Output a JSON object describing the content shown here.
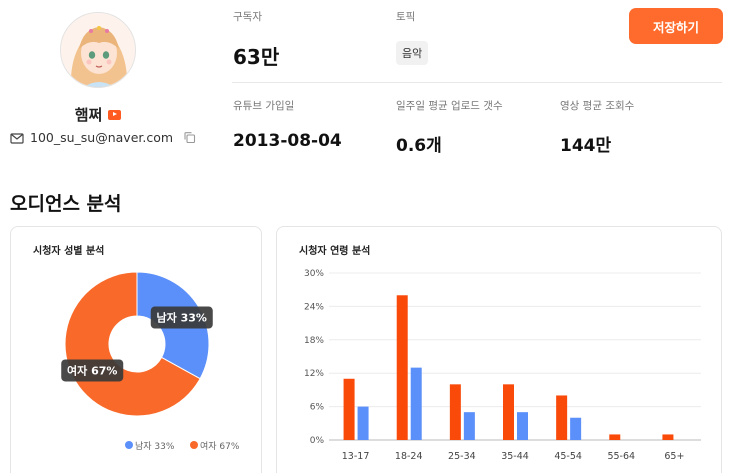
{
  "profile": {
    "channel_name": "햄쩌",
    "email": "100_su_su@naver.com"
  },
  "stats": {
    "subscribers_label": "구독자",
    "subscribers_value": "63만",
    "topic_label": "토픽",
    "topic_value": "음악",
    "joined_label": "유튜브 가입일",
    "joined_value": "2013-08-04",
    "weekly_uploads_label": "일주일 평균 업로드 갯수",
    "weekly_uploads_value": "0.6개",
    "avg_views_label": "영상 평균 조회수",
    "avg_views_value": "144만"
  },
  "actions": {
    "save_label": "저장하기"
  },
  "section": {
    "title": "오디언스 분석"
  },
  "colors": {
    "accent": "#ff6b2c",
    "male": "#5b8ff9",
    "female": "#f96a2a",
    "female_bar": "#fa4a0a"
  },
  "chart_data": [
    {
      "type": "pie",
      "title": "시청자 성별 분석",
      "donut": true,
      "slices": [
        {
          "label": "남자",
          "value": 33,
          "display": "남자 33%",
          "legend": "남자 33%",
          "color": "#5b8ff9"
        },
        {
          "label": "여자",
          "value": 67,
          "display": "여자 67%",
          "legend": "여자 67%",
          "color": "#f96a2a"
        }
      ],
      "legend_position": "bottom-right"
    },
    {
      "type": "bar",
      "title": "시청자 연령 분석",
      "categories": [
        "13-17",
        "18-24",
        "25-34",
        "35-44",
        "45-54",
        "55-64",
        "65+"
      ],
      "series": [
        {
          "values": [
            11,
            26,
            10,
            10,
            8,
            1,
            1
          ],
          "color": "#fa4a0a"
        },
        {
          "values": [
            6,
            13,
            5,
            5,
            4,
            0,
            0
          ],
          "color": "#5b8ff9"
        }
      ],
      "yticks": [
        "0%",
        "6%",
        "12%",
        "18%",
        "24%",
        "30%"
      ],
      "ylim": [
        0,
        30
      ],
      "grid": true
    }
  ]
}
